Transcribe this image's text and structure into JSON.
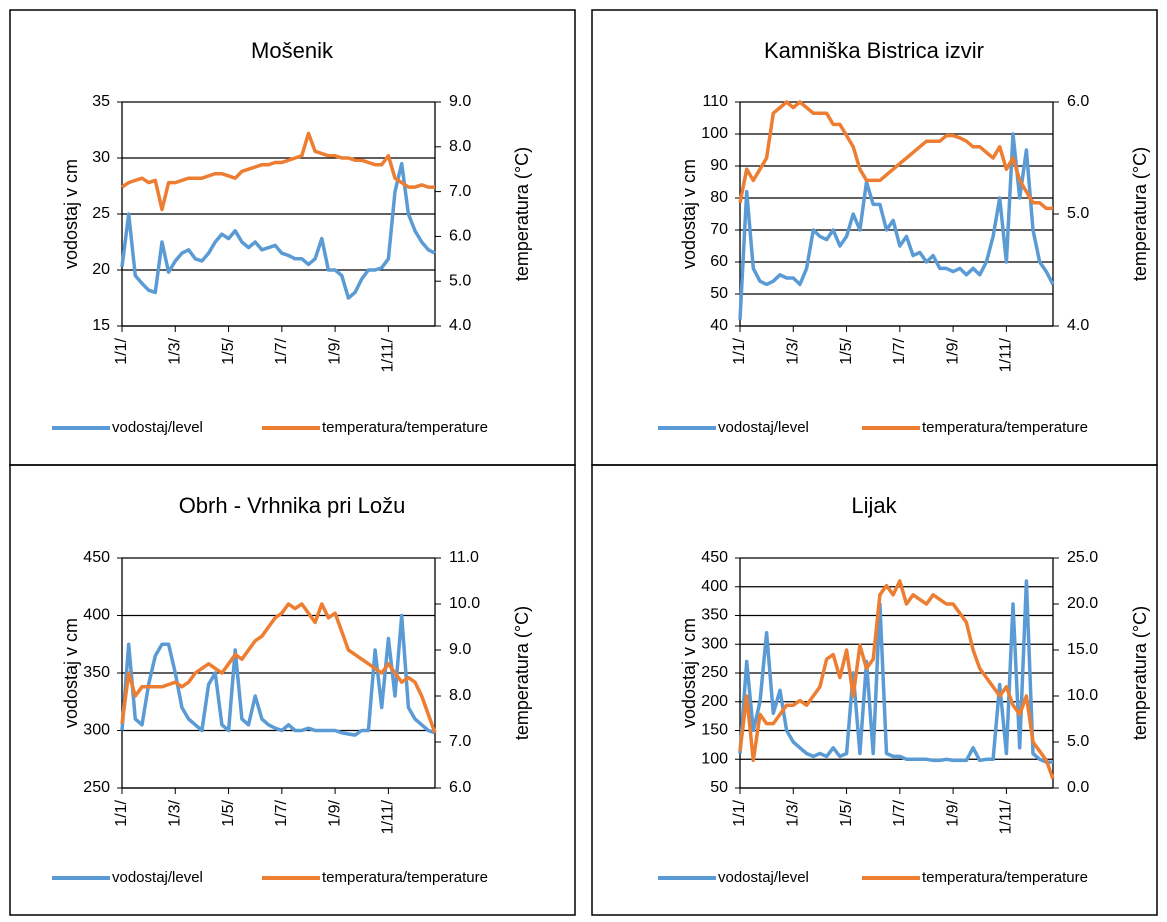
{
  "chart_data": [
    {
      "type": "line",
      "title": "Mošenik",
      "ylabel": "vodostaj v cm",
      "y2label": "temperatura (°C)",
      "categories": [
        "1/1/",
        null,
        null,
        null,
        null,
        null,
        null,
        null,
        "1/3/",
        null,
        null,
        null,
        null,
        null,
        null,
        null,
        "1/5/",
        null,
        null,
        null,
        null,
        null,
        null,
        null,
        "1/7/",
        null,
        null,
        null,
        null,
        null,
        null,
        null,
        "1/9/",
        null,
        null,
        null,
        null,
        null,
        null,
        null,
        "1/11/",
        null,
        null,
        null,
        null,
        null,
        null,
        null
      ],
      "ylim": [
        15,
        35
      ],
      "yticks": [
        15,
        20,
        25,
        30,
        35
      ],
      "y2lim": [
        4,
        9
      ],
      "y2ticks": [
        {
          "value": 4,
          "label": "4.0"
        },
        {
          "value": 5,
          "label": "5.0"
        },
        {
          "value": 6,
          "label": "6.0"
        },
        {
          "value": 7,
          "label": "7.0"
        },
        {
          "value": 8,
          "label": "8.0"
        },
        {
          "value": 9,
          "label": "9.0"
        }
      ],
      "grid": true,
      "legend": "bottom",
      "series": [
        {
          "name": "vodostaj/level",
          "color": "#5b9bd5",
          "values": [
            20.3,
            25,
            19.5,
            18.8,
            18.2,
            18,
            22.5,
            19.8,
            20.8,
            21.5,
            21.8,
            21,
            20.8,
            21.5,
            22.5,
            23.2,
            22.8,
            23.5,
            22.5,
            22,
            22.5,
            21.8,
            22,
            22.2,
            21.5,
            21.3,
            21,
            21,
            20.5,
            21,
            22.8,
            20,
            20,
            19.5,
            17.5,
            18,
            19.2,
            20,
            20,
            20.2,
            21,
            27,
            29.5,
            25,
            23.5,
            22.5,
            21.8,
            21.5
          ]
        },
        {
          "name": "temperatura/temperature",
          "color": "#ed7d31",
          "axis": "y2",
          "values": [
            7.1,
            7.2,
            7.25,
            7.3,
            7.2,
            7.25,
            6.6,
            7.2,
            7.2,
            7.25,
            7.3,
            7.3,
            7.3,
            7.35,
            7.4,
            7.4,
            7.35,
            7.3,
            7.45,
            7.5,
            7.55,
            7.6,
            7.6,
            7.65,
            7.65,
            7.7,
            7.75,
            7.8,
            8.3,
            7.9,
            7.85,
            7.8,
            7.8,
            7.75,
            7.75,
            7.7,
            7.7,
            7.65,
            7.6,
            7.6,
            7.8,
            7.3,
            7.2,
            7.1,
            7.1,
            7.15,
            7.1,
            7.1
          ]
        }
      ]
    },
    {
      "type": "line",
      "title": "Kamniška Bistrica izvir",
      "ylabel": "vodostaj v cm",
      "y2label": "temperatura (°C)",
      "categories": [
        "1/1/",
        null,
        null,
        null,
        null,
        null,
        null,
        null,
        "1/3/",
        null,
        null,
        null,
        null,
        null,
        null,
        null,
        "1/5/",
        null,
        null,
        null,
        null,
        null,
        null,
        null,
        "1/7/",
        null,
        null,
        null,
        null,
        null,
        null,
        null,
        "1/9/",
        null,
        null,
        null,
        null,
        null,
        null,
        null,
        "1/11/",
        null,
        null,
        null,
        null,
        null,
        null,
        null
      ],
      "ylim": [
        40,
        110
      ],
      "yticks": [
        40,
        50,
        60,
        70,
        80,
        90,
        100,
        110
      ],
      "y2lim": [
        4,
        6
      ],
      "y2ticks": [
        {
          "value": 4,
          "label": "4.0"
        },
        {
          "value": 5,
          "label": "5.0"
        },
        {
          "value": 6,
          "label": "6.0"
        }
      ],
      "grid": true,
      "legend": "bottom",
      "series": [
        {
          "name": "vodostaj/level",
          "color": "#5b9bd5",
          "values": [
            42,
            82,
            58,
            54,
            53,
            54,
            56,
            55,
            55,
            53,
            58,
            70,
            68,
            67,
            70,
            65,
            68,
            75,
            70,
            85,
            78,
            78,
            70,
            73,
            65,
            68,
            62,
            63,
            60,
            62,
            58,
            58,
            57,
            58,
            56,
            58,
            56,
            60,
            68,
            80,
            60,
            100,
            80,
            95,
            70,
            60,
            57,
            53
          ]
        },
        {
          "name": "temperatura/temperature",
          "color": "#ed7d31",
          "axis": "y2",
          "values": [
            5.1,
            5.4,
            5.3,
            5.4,
            5.5,
            5.9,
            5.95,
            6.0,
            5.95,
            6.0,
            5.95,
            5.9,
            5.9,
            5.9,
            5.8,
            5.8,
            5.7,
            5.6,
            5.4,
            5.3,
            5.3,
            5.3,
            5.35,
            5.4,
            5.45,
            5.5,
            5.55,
            5.6,
            5.65,
            5.65,
            5.65,
            5.7,
            5.7,
            5.68,
            5.65,
            5.6,
            5.6,
            5.55,
            5.5,
            5.6,
            5.4,
            5.5,
            5.3,
            5.2,
            5.1,
            5.1,
            5.05,
            5.05
          ]
        }
      ]
    },
    {
      "type": "line",
      "title": "Obrh - Vrhnika pri Ložu",
      "ylabel": "vodostaj v cm",
      "y2label": "temperatura (°C)",
      "categories": [
        "1/1/",
        null,
        null,
        null,
        null,
        null,
        null,
        null,
        "1/3/",
        null,
        null,
        null,
        null,
        null,
        null,
        null,
        "1/5/",
        null,
        null,
        null,
        null,
        null,
        null,
        null,
        "1/7/",
        null,
        null,
        null,
        null,
        null,
        null,
        null,
        "1/9/",
        null,
        null,
        null,
        null,
        null,
        null,
        null,
        "1/11/",
        null,
        null,
        null,
        null,
        null,
        null,
        null
      ],
      "ylim": [
        250,
        450
      ],
      "yticks": [
        250,
        300,
        350,
        400,
        450
      ],
      "y2lim": [
        6,
        11
      ],
      "y2ticks": [
        {
          "value": 6,
          "label": "6.0"
        },
        {
          "value": 7,
          "label": "7.0"
        },
        {
          "value": 8,
          "label": "8.0"
        },
        {
          "value": 9,
          "label": "9.0"
        },
        {
          "value": 10,
          "label": "10.0"
        },
        {
          "value": 11,
          "label": "11.0"
        }
      ],
      "grid": true,
      "legend": "bottom",
      "series": [
        {
          "name": "vodostaj/level",
          "color": "#5b9bd5",
          "values": [
            300,
            375,
            310,
            305,
            340,
            365,
            375,
            375,
            350,
            320,
            310,
            305,
            300,
            340,
            350,
            305,
            300,
            370,
            310,
            305,
            330,
            310,
            305,
            302,
            300,
            305,
            300,
            300,
            302,
            300,
            300,
            300,
            300,
            298,
            297,
            296,
            300,
            300,
            370,
            320,
            380,
            330,
            400,
            320,
            310,
            305,
            300,
            298
          ]
        },
        {
          "name": "temperatura/temperature",
          "color": "#ed7d31",
          "axis": "y2",
          "values": [
            7.4,
            8.5,
            8.0,
            8.2,
            8.2,
            8.2,
            8.2,
            8.25,
            8.3,
            8.2,
            8.3,
            8.5,
            8.6,
            8.7,
            8.6,
            8.5,
            8.7,
            8.9,
            8.8,
            9.0,
            9.2,
            9.3,
            9.5,
            9.7,
            9.8,
            10.0,
            9.9,
            10.0,
            9.8,
            9.6,
            10.0,
            9.7,
            9.8,
            9.4,
            9.0,
            8.9,
            8.8,
            8.7,
            8.6,
            8.5,
            8.7,
            8.5,
            8.3,
            8.4,
            8.3,
            8.0,
            7.6,
            7.2
          ]
        }
      ]
    },
    {
      "type": "line",
      "title": "Lijak",
      "ylabel": "vodostaj v cm",
      "y2label": "temperatura (°C)",
      "categories": [
        "1/1/",
        null,
        null,
        null,
        null,
        null,
        null,
        null,
        "1/3/",
        null,
        null,
        null,
        null,
        null,
        null,
        null,
        "1/5/",
        null,
        null,
        null,
        null,
        null,
        null,
        null,
        "1/7/",
        null,
        null,
        null,
        null,
        null,
        null,
        null,
        "1/9/",
        null,
        null,
        null,
        null,
        null,
        null,
        null,
        "1/11/",
        null,
        null,
        null,
        null,
        null,
        null,
        null
      ],
      "ylim": [
        50,
        450
      ],
      "yticks": [
        50,
        100,
        150,
        200,
        250,
        300,
        350,
        400,
        450
      ],
      "y2lim": [
        0,
        25
      ],
      "y2ticks": [
        {
          "value": 0,
          "label": "0.0"
        },
        {
          "value": 5,
          "label": "5.0"
        },
        {
          "value": 10,
          "label": "10.0"
        },
        {
          "value": 15,
          "label": "15.0"
        },
        {
          "value": 20,
          "label": "20.0"
        },
        {
          "value": 25,
          "label": "25.0"
        }
      ],
      "grid": true,
      "legend": "bottom",
      "series": [
        {
          "name": "vodostaj/level",
          "color": "#5b9bd5",
          "values": [
            110,
            270,
            150,
            200,
            320,
            180,
            220,
            150,
            130,
            120,
            110,
            105,
            110,
            105,
            120,
            105,
            110,
            250,
            110,
            270,
            110,
            370,
            110,
            105,
            105,
            100,
            100,
            100,
            100,
            98,
            98,
            100,
            98,
            98,
            98,
            120,
            98,
            100,
            100,
            230,
            110,
            370,
            120,
            410,
            110,
            100,
            95,
            95
          ]
        },
        {
          "name": "temperatura/temperature",
          "color": "#ed7d31",
          "axis": "y2",
          "values": [
            4,
            10,
            3,
            8,
            7,
            7,
            8,
            9,
            9,
            9.5,
            9,
            10,
            11,
            14,
            14.5,
            12,
            15,
            10,
            15.5,
            13,
            14,
            21,
            22,
            21,
            22.5,
            20,
            21,
            20.5,
            20,
            21,
            20.5,
            20,
            20,
            19,
            18,
            15,
            13,
            12,
            11,
            10,
            11,
            9,
            8,
            10,
            5,
            4,
            3,
            1
          ]
        }
      ]
    }
  ]
}
